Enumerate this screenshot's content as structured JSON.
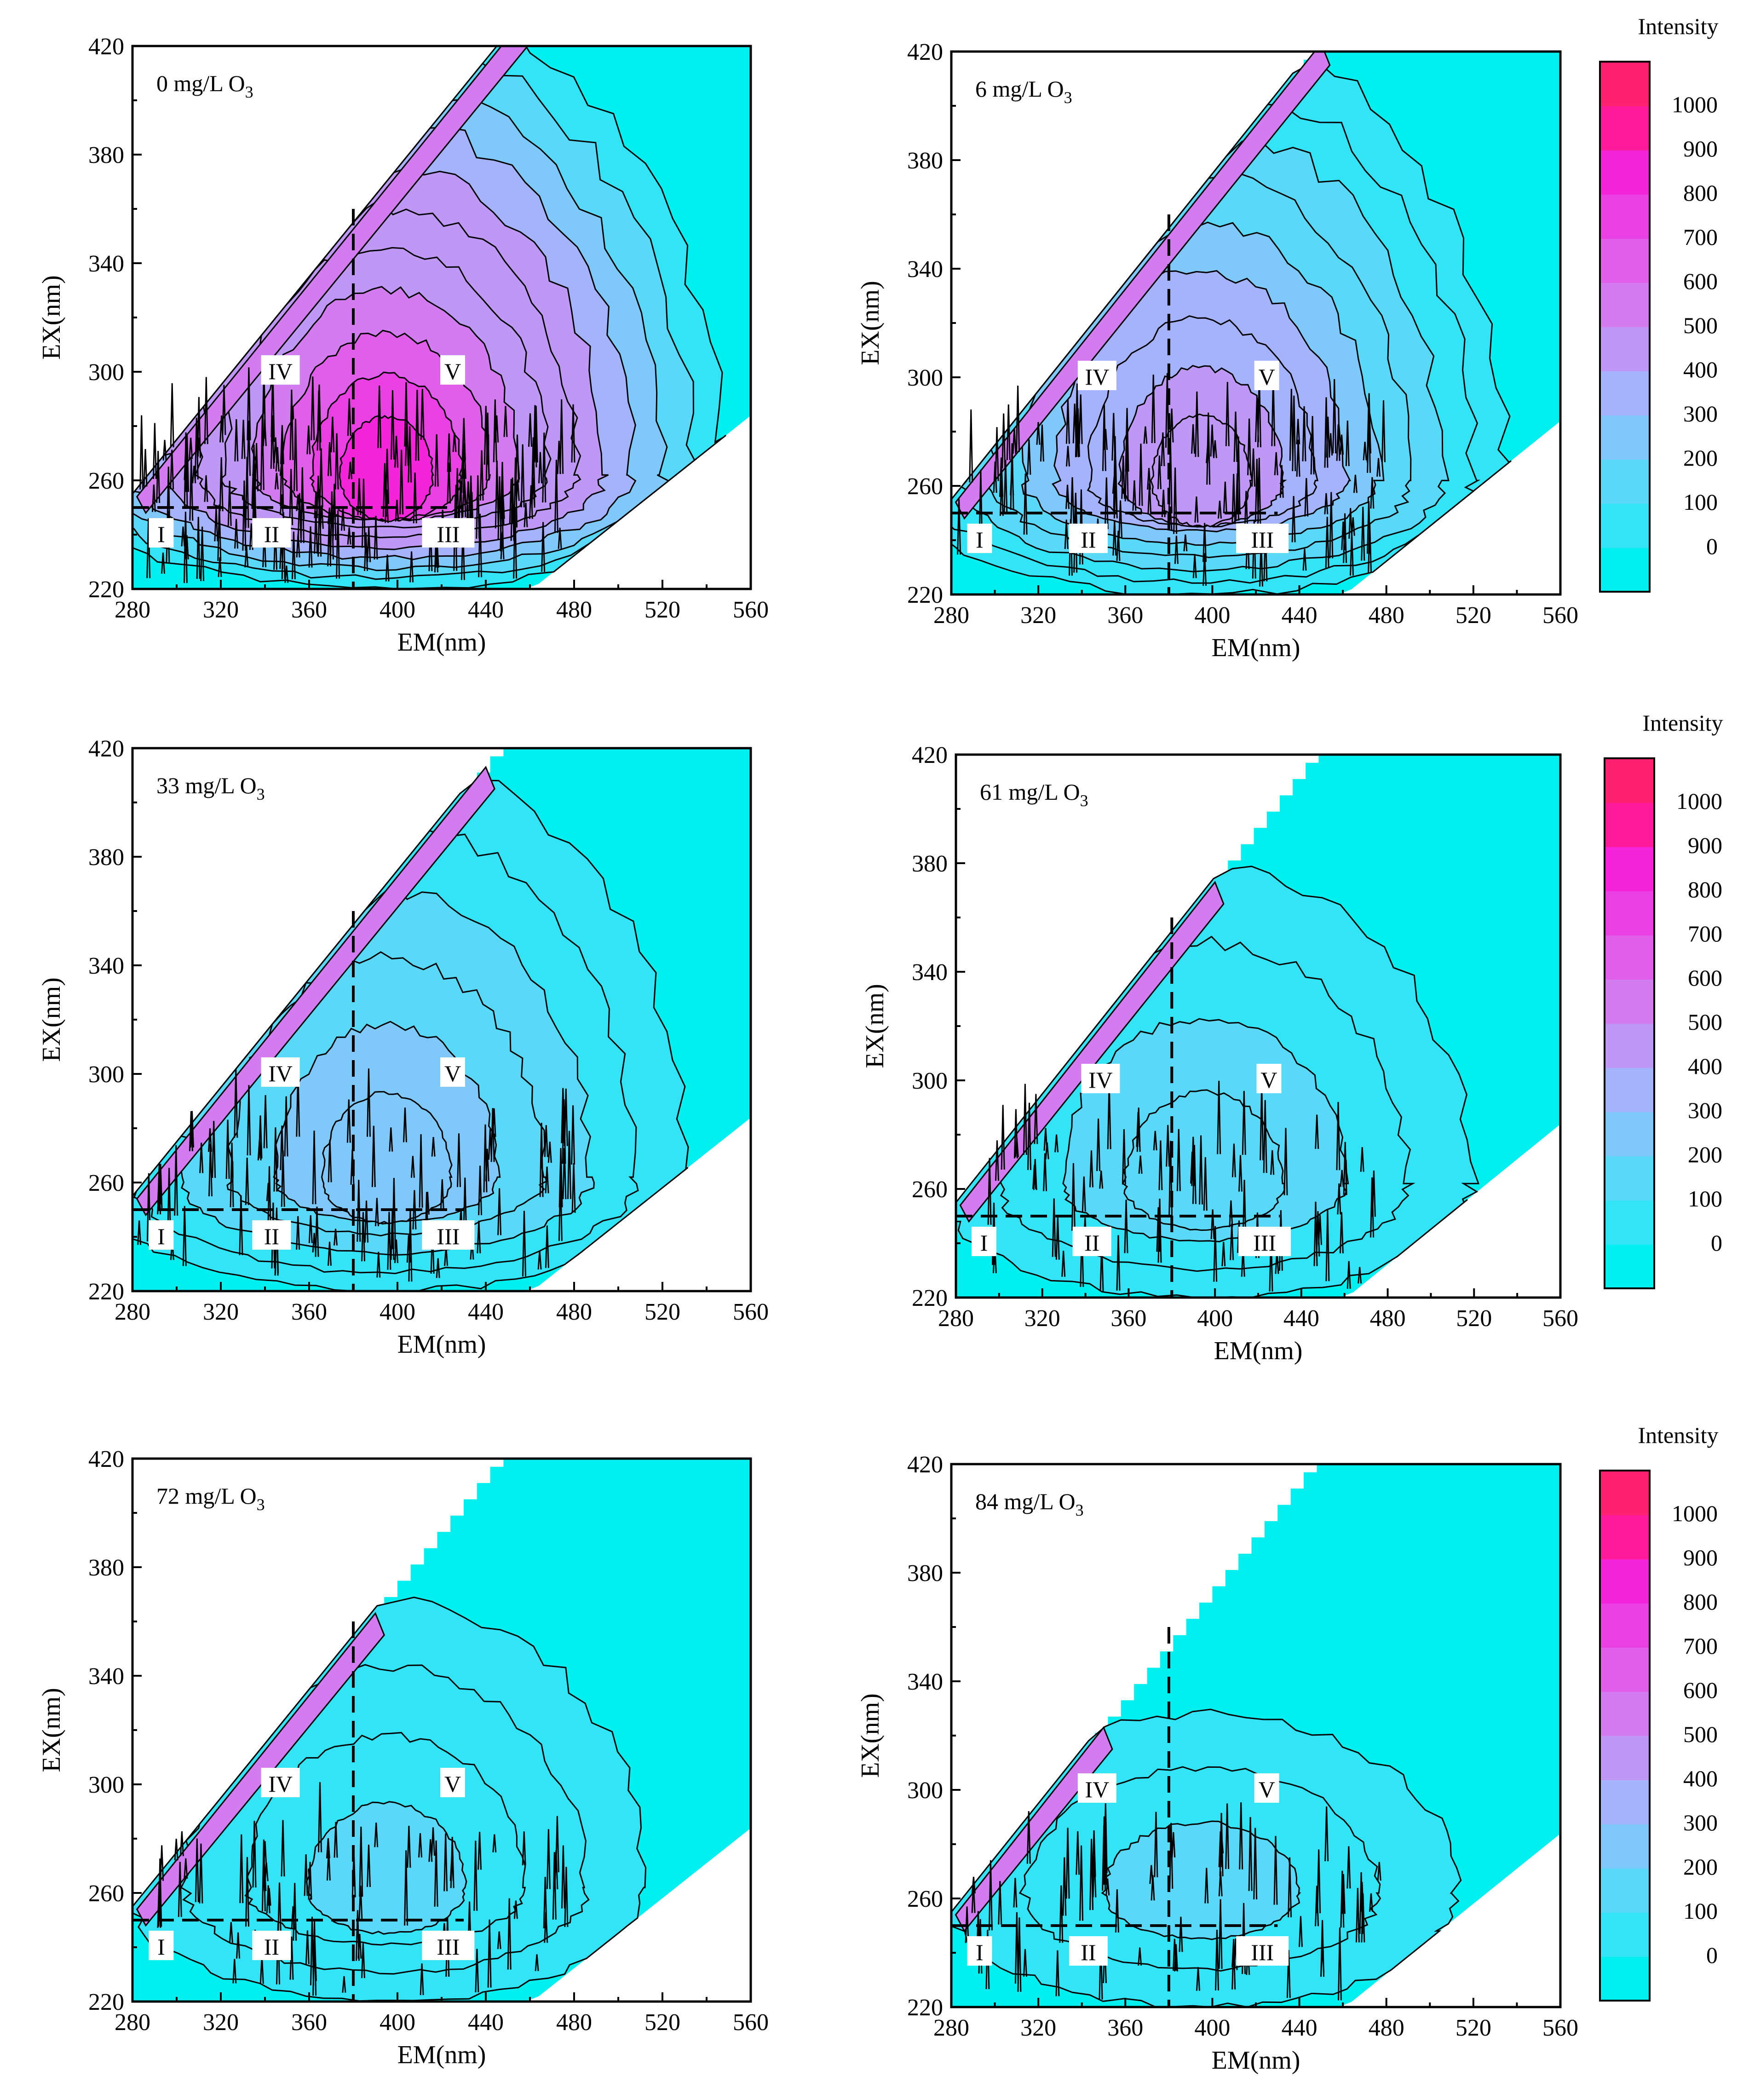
{
  "chart_data": [
    {
      "type": "heatmap",
      "title": "0 mg/L O",
      "title_sub": "3",
      "xlabel": "EM(nm)",
      "ylabel": "EX(nm)",
      "xlim": [
        280,
        560
      ],
      "ylim": [
        220,
        420
      ],
      "x_ticks": [
        "280",
        "320",
        "360",
        "400",
        "440",
        "480",
        "520",
        "560"
      ],
      "y_ticks": [
        "220",
        "260",
        "300",
        "340",
        "380",
        "420"
      ],
      "peak_intensity": 1000,
      "contour_extent": {
        "upper_ex": 400,
        "upper_em": 460,
        "right_em": 540
      },
      "contour_levels": 11,
      "regions": [
        {
          "label": "I",
          "em": 293,
          "ex": 240
        },
        {
          "label": "II",
          "em": 343,
          "ex": 240
        },
        {
          "label": "III",
          "em": 423,
          "ex": 240
        },
        {
          "label": "IV",
          "em": 347,
          "ex": 300
        },
        {
          "label": "V",
          "em": 425,
          "ex": 300
        }
      ],
      "divider_em": 380,
      "divider_ex": 250,
      "colorbar": false
    },
    {
      "type": "heatmap",
      "title": "6 mg/L O",
      "title_sub": "3",
      "xlabel": "EM(nm)",
      "ylabel": "EX(nm)",
      "xlim": [
        280,
        560
      ],
      "ylim": [
        220,
        420
      ],
      "x_ticks": [
        "280",
        "320",
        "360",
        "400",
        "440",
        "480",
        "520",
        "560"
      ],
      "y_ticks": [
        "220",
        "260",
        "300",
        "340",
        "380",
        "420"
      ],
      "peak_intensity": 550,
      "contour_extent": {
        "upper_ex": 390,
        "upper_em": 450,
        "right_em": 520
      },
      "contour_levels": 9,
      "regions": [
        {
          "label": "I",
          "em": 293,
          "ex": 240
        },
        {
          "label": "II",
          "em": 343,
          "ex": 240
        },
        {
          "label": "III",
          "em": 423,
          "ex": 240
        },
        {
          "label": "IV",
          "em": 347,
          "ex": 300
        },
        {
          "label": "V",
          "em": 425,
          "ex": 300
        }
      ],
      "divider_em": 380,
      "divider_ex": 250,
      "colorbar": true
    },
    {
      "type": "heatmap",
      "title": "33 mg/L O",
      "title_sub": "3",
      "xlabel": "EM(nm)",
      "ylabel": "EX(nm)",
      "xlim": [
        280,
        560
      ],
      "ylim": [
        220,
        420
      ],
      "x_ticks": [
        "280",
        "320",
        "360",
        "400",
        "440",
        "480",
        "520",
        "560"
      ],
      "y_ticks": [
        "220",
        "260",
        "300",
        "340",
        "380",
        "420"
      ],
      "peak_intensity": 330,
      "contour_extent": {
        "upper_ex": 380,
        "upper_em": 435,
        "right_em": 510
      },
      "contour_levels": 6,
      "regions": [
        {
          "label": "I",
          "em": 293,
          "ex": 240
        },
        {
          "label": "II",
          "em": 343,
          "ex": 240
        },
        {
          "label": "III",
          "em": 423,
          "ex": 240
        },
        {
          "label": "IV",
          "em": 347,
          "ex": 300
        },
        {
          "label": "V",
          "em": 425,
          "ex": 300
        }
      ],
      "divider_em": 380,
      "divider_ex": 250,
      "colorbar": false
    },
    {
      "type": "heatmap",
      "title": "61 mg/L O",
      "title_sub": "3",
      "xlabel": "EM(nm)",
      "ylabel": "EX(nm)",
      "xlim": [
        280,
        560
      ],
      "ylim": [
        220,
        420
      ],
      "x_ticks": [
        "280",
        "320",
        "360",
        "400",
        "440",
        "480",
        "520",
        "560"
      ],
      "y_ticks": [
        "220",
        "260",
        "300",
        "340",
        "380",
        "420"
      ],
      "peak_intensity": 200,
      "contour_extent": {
        "upper_ex": 340,
        "upper_em": 415,
        "right_em": 490
      },
      "contour_levels": 4,
      "regions": [
        {
          "label": "I",
          "em": 293,
          "ex": 240
        },
        {
          "label": "II",
          "em": 343,
          "ex": 240
        },
        {
          "label": "III",
          "em": 423,
          "ex": 240
        },
        {
          "label": "IV",
          "em": 347,
          "ex": 300
        },
        {
          "label": "V",
          "em": 425,
          "ex": 300
        }
      ],
      "divider_em": 380,
      "divider_ex": 250,
      "colorbar": true
    },
    {
      "type": "heatmap",
      "title": "72 mg/L O",
      "title_sub": "3",
      "xlabel": "EM(nm)",
      "ylabel": "EX(nm)",
      "xlim": [
        280,
        560
      ],
      "ylim": [
        220,
        420
      ],
      "x_ticks": [
        "280",
        "320",
        "360",
        "400",
        "440",
        "480",
        "520",
        "560"
      ],
      "y_ticks": [
        "220",
        "260",
        "300",
        "340",
        "380",
        "420"
      ],
      "peak_intensity": 180,
      "contour_extent": {
        "upper_ex": 330,
        "upper_em": 410,
        "right_em": 480
      },
      "contour_levels": 4,
      "regions": [
        {
          "label": "I",
          "em": 293,
          "ex": 240
        },
        {
          "label": "II",
          "em": 343,
          "ex": 240
        },
        {
          "label": "III",
          "em": 423,
          "ex": 240
        },
        {
          "label": "IV",
          "em": 347,
          "ex": 300
        },
        {
          "label": "V",
          "em": 425,
          "ex": 300
        }
      ],
      "divider_em": 380,
      "divider_ex": 250,
      "colorbar": false
    },
    {
      "type": "heatmap",
      "title": "84 mg/L O",
      "title_sub": "3",
      "xlabel": "EM(nm)",
      "ylabel": "EX(nm)",
      "xlim": [
        280,
        560
      ],
      "ylim": [
        220,
        420
      ],
      "x_ticks": [
        "280",
        "320",
        "360",
        "400",
        "440",
        "480",
        "520",
        "560"
      ],
      "y_ticks": [
        "220",
        "260",
        "300",
        "340",
        "380",
        "420"
      ],
      "peak_intensity": 150,
      "contour_extent": {
        "upper_ex": 290,
        "upper_em": 400,
        "right_em": 480
      },
      "contour_levels": 3,
      "regions": [
        {
          "label": "I",
          "em": 293,
          "ex": 240
        },
        {
          "label": "II",
          "em": 343,
          "ex": 240
        },
        {
          "label": "III",
          "em": 423,
          "ex": 240
        },
        {
          "label": "IV",
          "em": 347,
          "ex": 300
        },
        {
          "label": "V",
          "em": 425,
          "ex": 300
        }
      ],
      "divider_em": 380,
      "divider_ex": 250,
      "colorbar": true
    }
  ],
  "colorbar": {
    "title": "Intensity",
    "ticks": [
      "0",
      "100",
      "200",
      "300",
      "400",
      "500",
      "600",
      "700",
      "800",
      "900",
      "1000"
    ],
    "colors": [
      "#00f0f0",
      "#33e4f6",
      "#5ad8f8",
      "#7fc8fa",
      "#a4b3fb",
      "#bf98f5",
      "#d27cef",
      "#e05ee9",
      "#ea40e3",
      "#f424db",
      "#ff1a9a",
      "#ff2070"
    ]
  }
}
